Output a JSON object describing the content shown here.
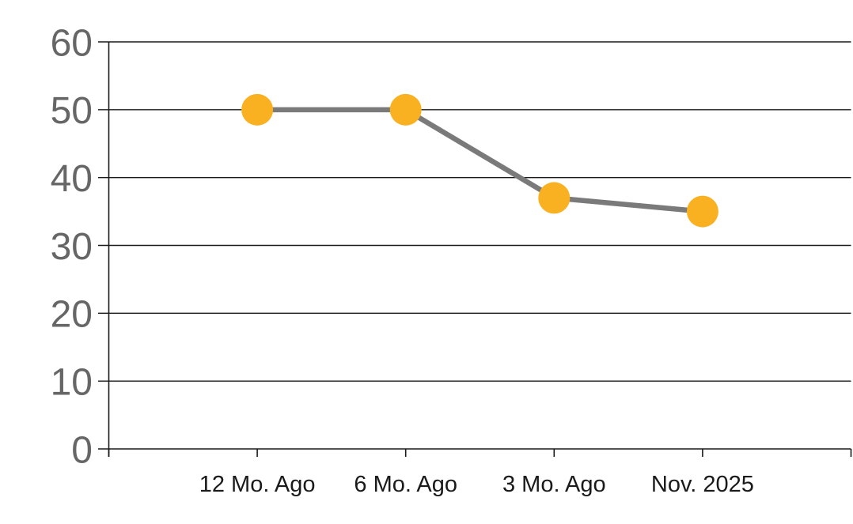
{
  "chart_data": {
    "type": "line",
    "categories": [
      "12 Mo. Ago",
      "6 Mo. Ago",
      "3 Mo. Ago",
      "Nov. 2025"
    ],
    "values": [
      50,
      50,
      37,
      35
    ],
    "series": [
      {
        "name": "",
        "values": [
          50,
          50,
          37,
          35
        ]
      }
    ],
    "title": "",
    "xlabel": "",
    "ylabel": "",
    "ylim": [
      0,
      60
    ],
    "ytick_step": 10,
    "ytick_labels": [
      "0",
      "10",
      "20",
      "30",
      "40",
      "50",
      "60"
    ],
    "grid": "horizontal",
    "legend": "none",
    "colors": {
      "marker": "#F9B122",
      "line": "#7A7A7A",
      "grid": "#1A1A1A",
      "axis": "#1A1A1A",
      "ytick_label": "#666666",
      "xtick_label": "#1A1A1A",
      "background": "#FFFFFF"
    }
  }
}
